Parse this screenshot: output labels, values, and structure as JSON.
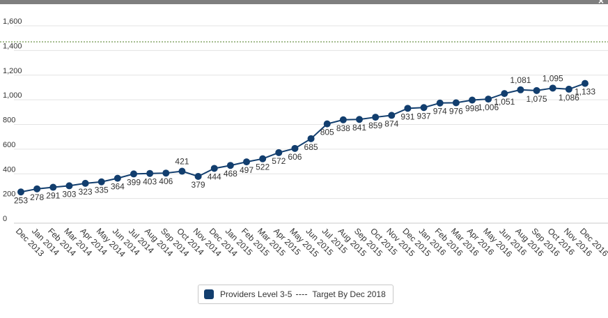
{
  "window": {
    "close_glyph": "×"
  },
  "chart_data": {
    "type": "line",
    "title": "",
    "xlabel": "",
    "ylabel": "",
    "ylim": [
      0,
      1600
    ],
    "yticks": [
      0,
      200,
      400,
      600,
      800,
      1000,
      1200,
      1400,
      1600
    ],
    "ytick_labels": [
      "0",
      "200",
      "400",
      "600",
      "800",
      "1,000",
      "1,200",
      "1,400",
      "1,600"
    ],
    "grid": true,
    "legend_placement": "bottom",
    "categories": [
      "Dec 2013",
      "Jan 2014",
      "Feb 2014",
      "Mar 2014",
      "Apr 2014",
      "May 2014",
      "Jun 2014",
      "Jul 2014",
      "Aug 2014",
      "Sep 2014",
      "Oct 2014",
      "Nov 2014",
      "Dec 2014",
      "Jan 2015",
      "Feb 2015",
      "Mar 2015",
      "Apr 2015",
      "May 2015",
      "Jun 2015",
      "Jul 2015",
      "Aug 2015",
      "Sep 2015",
      "Oct 2015",
      "Nov 2015",
      "Dec 2015",
      "Jan 2016",
      "Feb 2016",
      "Mar 2016",
      "Apr 2016",
      "May 2016",
      "Jun 2016",
      "Aug 2016",
      "Sep 2016",
      "Oct 2016",
      "Nov 2016",
      "Dec 2016"
    ],
    "series": [
      {
        "name": "Providers Level 3-5",
        "color": "#123e6e",
        "values": [
          253,
          278,
          291,
          303,
          323,
          335,
          364,
          399,
          403,
          406,
          421,
          379,
          444,
          468,
          497,
          522,
          572,
          606,
          685,
          805,
          838,
          841,
          859,
          874,
          931,
          937,
          974,
          976,
          998,
          1006,
          1051,
          1081,
          1075,
          1095,
          1086,
          1133
        ],
        "labels": [
          "253",
          "278",
          "291",
          "303",
          "323",
          "335",
          "364",
          "399",
          "403",
          "406",
          "421",
          "379",
          "444",
          "468",
          "497",
          "522",
          "572",
          "606",
          "685",
          "805",
          "838",
          "841",
          "859",
          "874",
          "931",
          "937",
          "974",
          "976",
          "998",
          "1,006",
          "1,051",
          "1,081",
          "1,075",
          "1,095",
          "1,086",
          "1,133"
        ]
      },
      {
        "name": "Target By Dec 2018",
        "color": "#4a7a1e",
        "style": "dashed",
        "value": 1470
      }
    ]
  },
  "legend": {
    "series_label": "Providers Level 3-5",
    "target_label": "Target By Dec 2018",
    "series_color": "#123e6e"
  }
}
